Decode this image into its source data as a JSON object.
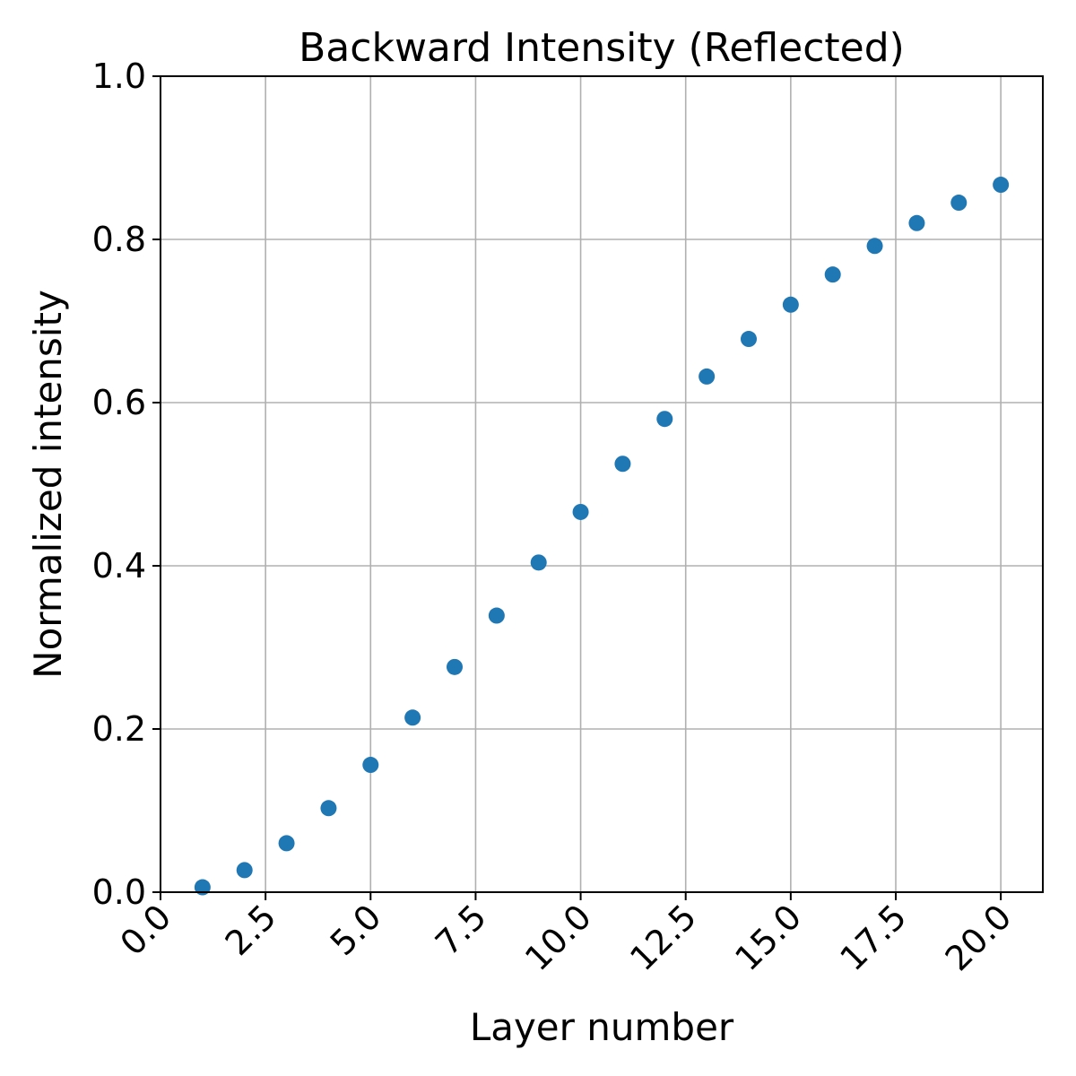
{
  "chart_data": {
    "type": "scatter",
    "title": "Backward Intensity (Reflected)",
    "xlabel": "Layer number",
    "ylabel": "Normalized intensity",
    "xlim": [
      0,
      21
    ],
    "ylim": [
      0,
      1
    ],
    "xticks": [
      "0.0",
      "2.5",
      "5.0",
      "7.5",
      "10.0",
      "12.5",
      "15.0",
      "17.5",
      "20.0"
    ],
    "yticks": [
      "0.0",
      "0.2",
      "0.4",
      "0.6",
      "0.8",
      "1.0"
    ],
    "grid": true,
    "color": "#1f77b4",
    "series": [
      {
        "x": [
          1,
          2,
          3,
          4,
          5,
          6,
          7,
          8,
          9,
          10,
          11,
          12,
          13,
          14,
          15,
          16,
          17,
          18,
          19,
          20
        ],
        "y": [
          0.006,
          0.027,
          0.06,
          0.103,
          0.156,
          0.214,
          0.276,
          0.339,
          0.404,
          0.466,
          0.525,
          0.58,
          0.632,
          0.678,
          0.72,
          0.757,
          0.792,
          0.82,
          0.845,
          0.867
        ]
      }
    ]
  }
}
